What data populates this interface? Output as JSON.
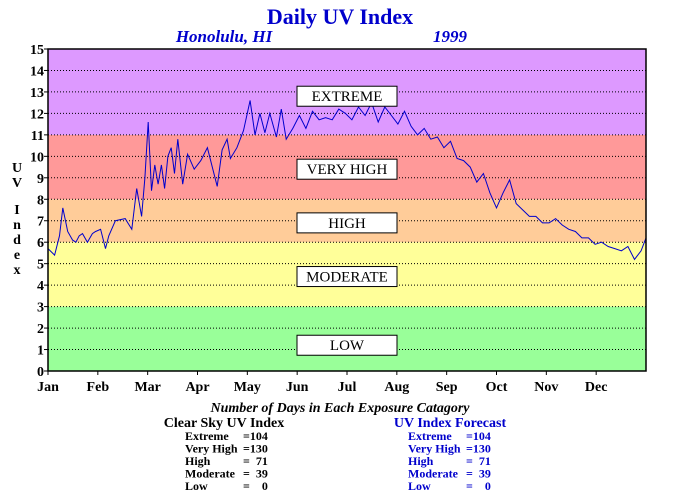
{
  "chart_data": {
    "type": "line",
    "title": "Daily UV Index",
    "location": "Honolulu, HI",
    "year": "1999",
    "ylabel": "UV Index",
    "ylim": [
      0,
      15
    ],
    "yticks": [
      "0",
      "1",
      "2",
      "3",
      "4",
      "5",
      "6",
      "7",
      "8",
      "9",
      "10",
      "11",
      "12",
      "13",
      "14",
      "15"
    ],
    "xlim": [
      1,
      365
    ],
    "months": [
      "Jan",
      "Feb",
      "Mar",
      "Apr",
      "May",
      "Jun",
      "Jul",
      "Aug",
      "Sep",
      "Oct",
      "Nov",
      "Dec"
    ],
    "grid": true,
    "bands": [
      {
        "label": "LOW",
        "from": 0,
        "to": 3,
        "color": "#99ff99"
      },
      {
        "label": "MODERATE",
        "from": 3,
        "to": 6,
        "color": "#ffff99"
      },
      {
        "label": "HIGH",
        "from": 6,
        "to": 8,
        "color": "#ffcc99"
      },
      {
        "label": "VERY HIGH",
        "from": 8,
        "to": 11,
        "color": "#ff9999"
      },
      {
        "label": "EXTREME",
        "from": 11,
        "to": 15,
        "color": "#dd99ff"
      }
    ],
    "series": [
      {
        "color": "#0000cc",
        "x": [
          1,
          5,
          8,
          10,
          13,
          16,
          18,
          20,
          22,
          25,
          28,
          30,
          33,
          36,
          38,
          42,
          48,
          52,
          55,
          58,
          60,
          62,
          64,
          66,
          68,
          70,
          72,
          74,
          76,
          78,
          80,
          83,
          86,
          90,
          94,
          98,
          101,
          104,
          107,
          110,
          112,
          116,
          120,
          124,
          127,
          130,
          133,
          136,
          140,
          143,
          146,
          150,
          154,
          158,
          162,
          166,
          170,
          174,
          178,
          182,
          186,
          190,
          194,
          198,
          202,
          206,
          210,
          214,
          218,
          222,
          226,
          230,
          234,
          238,
          242,
          246,
          250,
          254,
          258,
          262,
          266,
          270,
          274,
          278,
          282,
          286,
          290,
          294,
          298,
          302,
          306,
          310,
          314,
          318,
          322,
          326,
          330,
          334,
          338,
          342,
          346,
          350,
          354,
          358,
          362,
          365
        ],
        "y": [
          5.7,
          5.4,
          6.3,
          7.6,
          6.5,
          6.1,
          6.0,
          6.3,
          6.4,
          6.0,
          6.4,
          6.5,
          6.6,
          5.7,
          6.3,
          7.0,
          7.1,
          6.6,
          8.5,
          7.2,
          9.0,
          11.6,
          8.4,
          9.6,
          8.7,
          9.6,
          8.5,
          10.0,
          10.4,
          9.2,
          10.8,
          8.7,
          10.1,
          9.4,
          9.8,
          10.4,
          9.5,
          8.6,
          10.3,
          10.8,
          9.9,
          10.4,
          11.2,
          12.6,
          11.0,
          12.0,
          11.1,
          12.0,
          10.9,
          12.2,
          10.8,
          11.3,
          11.9,
          11.3,
          12.1,
          11.7,
          11.8,
          11.7,
          12.2,
          12.0,
          11.7,
          12.3,
          11.9,
          12.5,
          11.6,
          12.3,
          11.9,
          11.5,
          12.1,
          11.4,
          11.0,
          11.3,
          10.8,
          10.9,
          10.4,
          10.7,
          9.9,
          9.8,
          9.5,
          8.8,
          9.2,
          8.3,
          7.6,
          8.3,
          8.9,
          7.8,
          7.5,
          7.2,
          7.2,
          6.9,
          6.9,
          7.1,
          6.8,
          6.6,
          6.5,
          6.2,
          6.2,
          5.9,
          6.0,
          5.8,
          5.7,
          5.6,
          5.8,
          5.2,
          5.6,
          6.2
        ]
      }
    ],
    "counts_title": "Number of Days in Each Exposure Catagory",
    "tables": [
      {
        "title": "Clear Sky UV Index",
        "color": "#000000",
        "rows": [
          {
            "label": "Extreme",
            "value": "=104"
          },
          {
            "label": "Very High",
            "value": "=130"
          },
          {
            "label": "High",
            "value": "=  71"
          },
          {
            "label": "Moderate",
            "value": "=  39"
          },
          {
            "label": "Low",
            "value": "=    0"
          }
        ]
      },
      {
        "title": "UV Index Forecast",
        "color": "#0000cc",
        "rows": [
          {
            "label": "Extreme",
            "value": "=104"
          },
          {
            "label": "Very High",
            "value": "=130"
          },
          {
            "label": "High",
            "value": "=  71"
          },
          {
            "label": "Moderate",
            "value": "=  39"
          },
          {
            "label": "Low",
            "value": "=    0"
          }
        ]
      }
    ]
  }
}
